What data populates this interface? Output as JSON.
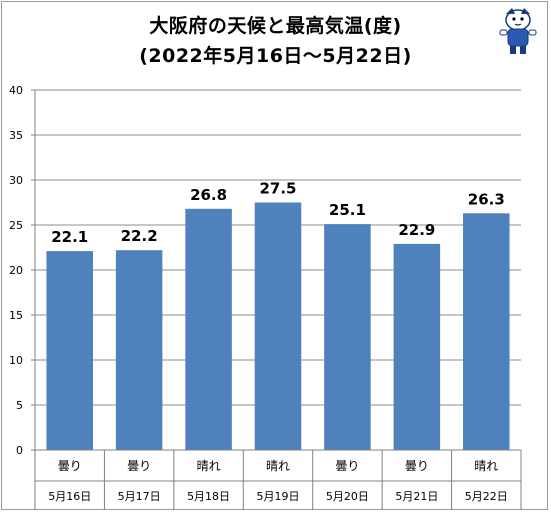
{
  "chart_data": {
    "type": "bar",
    "title_line1": "大阪府の天候と最高気温(度)",
    "title_line2": "(2022年5月16日～5月22日)",
    "categories": [
      "5月16日",
      "5月17日",
      "5月18日",
      "5月19日",
      "5月20日",
      "5月21日",
      "5月22日"
    ],
    "weather": [
      "曇り",
      "曇り",
      "晴れ",
      "晴れ",
      "曇り",
      "曇り",
      "晴れ"
    ],
    "values": [
      22.1,
      22.2,
      26.8,
      27.5,
      25.1,
      22.9,
      26.3
    ],
    "data_labels": [
      "22.1",
      "22.2",
      "26.8",
      "27.5",
      "25.1",
      "22.9",
      "26.3"
    ],
    "ylim": [
      0,
      40
    ],
    "yticks": [
      "0",
      "5",
      "10",
      "15",
      "20",
      "25",
      "30",
      "35",
      "40"
    ],
    "grid": true,
    "bar_color": "#4F81BD",
    "grid_color": "#8c8c8c"
  }
}
